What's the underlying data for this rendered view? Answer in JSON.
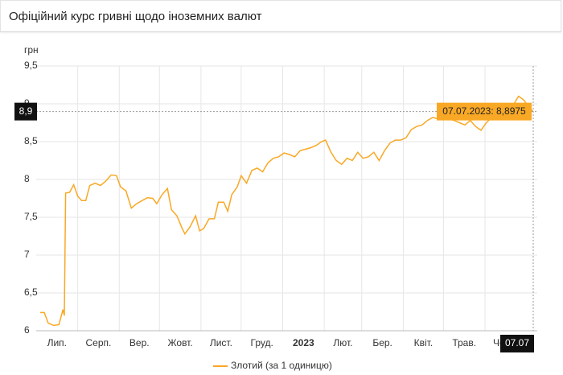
{
  "header": {
    "title": "Офіційний курс гривні щодо іноземних валют"
  },
  "chart_data": {
    "type": "line",
    "y_label": "грн",
    "xlim": [
      "2022-07-01",
      "2023-07-10"
    ],
    "xticks": [
      {
        "value": "2022-07-01",
        "label": "Лип."
      },
      {
        "value": "2022-08-01",
        "label": "Серп."
      },
      {
        "value": "2022-09-01",
        "label": "Вер."
      },
      {
        "value": "2022-10-01",
        "label": "Жовт."
      },
      {
        "value": "2022-11-01",
        "label": "Лист."
      },
      {
        "value": "2022-12-01",
        "label": "Груд."
      },
      {
        "value": "2023-01-01",
        "label": "2023"
      },
      {
        "value": "2023-02-01",
        "label": "Лют."
      },
      {
        "value": "2023-03-01",
        "label": "Бер."
      },
      {
        "value": "2023-04-01",
        "label": "Квіт."
      },
      {
        "value": "2023-05-01",
        "label": "Трав."
      },
      {
        "value": "2023-06-01",
        "label": "Черв."
      }
    ],
    "ylim": [
      6,
      9.5
    ],
    "yticks": [
      {
        "value": 6,
        "label": "6"
      },
      {
        "value": 6.5,
        "label": "6,5"
      },
      {
        "value": 7,
        "label": "7"
      },
      {
        "value": 7.5,
        "label": "7,5"
      },
      {
        "value": 8,
        "label": "8"
      },
      {
        "value": 8.5,
        "label": "8,5"
      },
      {
        "value": 9,
        "label": "9"
      },
      {
        "value": 9.5,
        "label": "9,5"
      }
    ],
    "grid": true,
    "x": [
      "2022-07-04",
      "2022-07-07",
      "2022-07-10",
      "2022-07-14",
      "2022-07-18",
      "2022-07-21",
      "2022-07-22",
      "2022-07-23",
      "2022-07-26",
      "2022-07-29",
      "2022-08-01",
      "2022-08-04",
      "2022-08-07",
      "2022-08-10",
      "2022-08-14",
      "2022-08-18",
      "2022-08-22",
      "2022-08-26",
      "2022-08-30",
      "2022-09-02",
      "2022-09-06",
      "2022-09-10",
      "2022-09-14",
      "2022-09-18",
      "2022-09-22",
      "2022-09-26",
      "2022-09-29",
      "2022-10-03",
      "2022-10-07",
      "2022-10-10",
      "2022-10-14",
      "2022-10-18",
      "2022-10-20",
      "2022-10-24",
      "2022-10-28",
      "2022-10-31",
      "2022-11-03",
      "2022-11-07",
      "2022-11-11",
      "2022-11-14",
      "2022-11-18",
      "2022-11-21",
      "2022-11-24",
      "2022-11-28",
      "2022-12-01",
      "2022-12-05",
      "2022-12-09",
      "2022-12-13",
      "2022-12-17",
      "2022-12-21",
      "2022-12-25",
      "2022-12-29",
      "2023-01-02",
      "2023-01-06",
      "2023-01-10",
      "2023-01-14",
      "2023-01-18",
      "2023-01-22",
      "2023-01-26",
      "2023-01-30",
      "2023-02-02",
      "2023-02-06",
      "2023-02-10",
      "2023-02-14",
      "2023-02-18",
      "2023-02-22",
      "2023-02-26",
      "2023-03-02",
      "2023-03-06",
      "2023-03-10",
      "2023-03-14",
      "2023-03-18",
      "2023-03-22",
      "2023-03-26",
      "2023-03-30",
      "2023-04-03",
      "2023-04-07",
      "2023-04-11",
      "2023-04-15",
      "2023-04-19",
      "2023-04-23",
      "2023-04-27",
      "2023-05-01",
      "2023-05-05",
      "2023-05-09",
      "2023-05-13",
      "2023-05-17",
      "2023-05-21",
      "2023-05-25",
      "2023-05-29",
      "2023-06-02",
      "2023-06-06",
      "2023-06-10",
      "2023-06-14",
      "2023-06-18",
      "2023-06-22",
      "2023-06-26",
      "2023-06-30",
      "2023-07-04",
      "2023-07-07"
    ],
    "series": [
      {
        "name": "Злотий (за 1 одиницю)",
        "color": "#f9a825",
        "values": [
          6.24,
          6.24,
          6.1,
          6.07,
          6.08,
          6.28,
          6.2,
          7.82,
          7.83,
          7.93,
          7.78,
          7.72,
          7.72,
          7.92,
          7.95,
          7.92,
          7.98,
          8.06,
          8.05,
          7.9,
          7.85,
          7.62,
          7.68,
          7.72,
          7.76,
          7.75,
          7.68,
          7.8,
          7.88,
          7.6,
          7.52,
          7.35,
          7.28,
          7.38,
          7.52,
          7.32,
          7.35,
          7.48,
          7.48,
          7.7,
          7.7,
          7.58,
          7.8,
          7.9,
          8.05,
          7.95,
          8.12,
          8.15,
          8.1,
          8.22,
          8.28,
          8.3,
          8.35,
          8.33,
          8.3,
          8.38,
          8.4,
          8.42,
          8.45,
          8.5,
          8.52,
          8.36,
          8.25,
          8.2,
          8.28,
          8.25,
          8.36,
          8.28,
          8.3,
          8.36,
          8.25,
          8.38,
          8.48,
          8.52,
          8.52,
          8.55,
          8.66,
          8.7,
          8.72,
          8.78,
          8.82,
          8.8,
          8.85,
          8.8,
          8.78,
          8.75,
          8.72,
          8.78,
          8.7,
          8.65,
          8.75,
          8.82,
          8.95,
          8.92,
          8.95,
          8.98,
          9.1,
          9.05,
          8.95,
          8.8975
        ]
      }
    ],
    "tooltip": {
      "x": "2023-07-07",
      "value": 8.8975,
      "label": "07.07.2023: 8,8975",
      "y_label": "8,9",
      "x_label": "07.07"
    }
  }
}
